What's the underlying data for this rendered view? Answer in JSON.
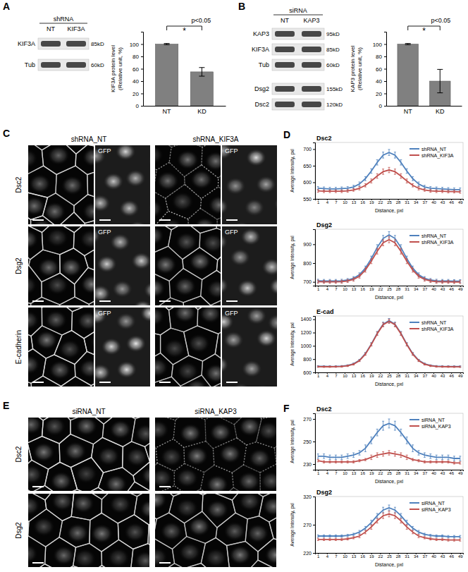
{
  "chart_data": [
    {
      "type": "bar",
      "categories": [
        "NT",
        "KD"
      ],
      "values": [
        100,
        55
      ],
      "errors": [
        1,
        7
      ],
      "color": "#808080",
      "ylim": [
        0,
        120
      ],
      "yticks": [
        0,
        20,
        40,
        60,
        80,
        100
      ],
      "y_label": [
        "KIF3A protein level",
        "(Relative unit, %)"
      ],
      "annotations": [
        "p<0.05",
        "*"
      ]
    },
    {
      "type": "bar",
      "categories": [
        "NT",
        "KD"
      ],
      "values": [
        100,
        40
      ],
      "errors": [
        1,
        19
      ],
      "color": "#808080",
      "ylim": [
        0,
        120
      ],
      "yticks": [
        0,
        20,
        40,
        60,
        80,
        100
      ],
      "y_label": [
        "KAP3 protein level",
        "(Relative unit, %)"
      ],
      "annotations": [
        "p<0.05",
        "*"
      ]
    },
    {
      "type": "line",
      "title": "Dsc2",
      "x_label": "Distance, pxl",
      "y_label": "Average Intensity, pxl",
      "legend": "upper right",
      "x": [
        1,
        3,
        5,
        7,
        9,
        11,
        13,
        15,
        17,
        19,
        21,
        23,
        25,
        27,
        29,
        31,
        33,
        35,
        37,
        39,
        41,
        43,
        45,
        47,
        49
      ],
      "xlim": [
        0,
        50
      ],
      "xticks": [
        1,
        4,
        7,
        10,
        13,
        16,
        19,
        22,
        25,
        28,
        31,
        34,
        37,
        40,
        43,
        46,
        49
      ],
      "ylim": [
        550,
        720
      ],
      "yticks": [
        550,
        600,
        650,
        700
      ],
      "series": [
        {
          "name": "shRNA_NT",
          "color": "#4f81bd",
          "values": [
            582,
            581,
            580,
            580,
            581,
            582,
            586,
            595,
            611,
            634,
            660,
            682,
            690,
            682,
            660,
            634,
            611,
            595,
            586,
            582,
            581,
            580,
            579,
            578,
            578
          ],
          "errors": [
            5,
            5,
            5,
            5,
            5,
            5,
            5,
            6,
            6,
            7,
            8,
            9,
            9,
            9,
            8,
            7,
            6,
            6,
            5,
            5,
            5,
            5,
            5,
            5,
            5
          ]
        },
        {
          "name": "shRNA_KIF3A",
          "color": "#c0504d",
          "values": [
            574,
            573,
            573,
            573,
            573,
            574,
            577,
            582,
            591,
            604,
            619,
            632,
            637,
            632,
            619,
            604,
            591,
            582,
            577,
            574,
            573,
            573,
            572,
            572,
            571
          ],
          "errors": [
            4,
            4,
            4,
            4,
            4,
            4,
            4,
            5,
            5,
            6,
            7,
            8,
            8,
            8,
            7,
            6,
            5,
            5,
            4,
            4,
            4,
            4,
            4,
            4,
            4
          ]
        }
      ]
    },
    {
      "type": "line",
      "title": "Dsg2",
      "x_label": "Distance, pxl",
      "y_label": "Average Intensity, pxl",
      "legend": "upper right",
      "x": [
        1,
        3,
        5,
        7,
        9,
        11,
        13,
        15,
        17,
        19,
        21,
        23,
        25,
        27,
        29,
        31,
        33,
        35,
        37,
        39,
        41,
        43,
        45,
        47,
        49
      ],
      "xlim": [
        0,
        50
      ],
      "xticks": [
        1,
        4,
        7,
        10,
        13,
        16,
        19,
        22,
        25,
        28,
        31,
        34,
        37,
        40,
        43,
        46,
        49
      ],
      "ylim": [
        680,
        980
      ],
      "yticks": [
        700,
        800,
        900
      ],
      "series": [
        {
          "name": "shRNA_NT",
          "color": "#4f81bd",
          "values": [
            706,
            705,
            705,
            705,
            706,
            710,
            719,
            738,
            773,
            824,
            883,
            931,
            950,
            931,
            883,
            824,
            773,
            738,
            719,
            710,
            706,
            705,
            705,
            704,
            704
          ],
          "errors": [
            8,
            8,
            8,
            8,
            8,
            8,
            9,
            10,
            11,
            13,
            15,
            16,
            17,
            16,
            15,
            13,
            11,
            10,
            9,
            8,
            8,
            8,
            8,
            8,
            8
          ]
        },
        {
          "name": "shRNA_KIF3A",
          "color": "#c0504d",
          "values": [
            701,
            700,
            700,
            700,
            701,
            705,
            713,
            730,
            763,
            810,
            863,
            908,
            925,
            908,
            863,
            810,
            763,
            730,
            713,
            705,
            701,
            700,
            700,
            699,
            699
          ],
          "errors": [
            8,
            8,
            8,
            8,
            8,
            8,
            9,
            10,
            11,
            13,
            15,
            16,
            17,
            16,
            15,
            13,
            11,
            10,
            9,
            8,
            8,
            8,
            8,
            8,
            8
          ]
        }
      ]
    },
    {
      "type": "line",
      "title": "E-cad",
      "x_label": "Distance, pxl",
      "y_label": "Average Intensity, pxl",
      "legend": "upper right",
      "x": [
        1,
        3,
        5,
        7,
        9,
        11,
        13,
        15,
        17,
        19,
        21,
        23,
        25,
        27,
        29,
        31,
        33,
        35,
        37,
        39,
        41,
        43,
        45,
        47,
        49
      ],
      "xlim": [
        0,
        50
      ],
      "xticks": [
        1,
        4,
        7,
        10,
        13,
        16,
        19,
        22,
        25,
        28,
        31,
        34,
        37,
        40,
        43,
        46,
        49
      ],
      "ylim": [
        600,
        1450
      ],
      "yticks": [
        600,
        800,
        1000,
        1200,
        1400
      ],
      "series": [
        {
          "name": "shRNA_NT",
          "color": "#4f81bd",
          "values": [
            692,
            691,
            690,
            691,
            694,
            704,
            729,
            783,
            882,
            1026,
            1191,
            1327,
            1380,
            1327,
            1191,
            1026,
            882,
            783,
            729,
            704,
            694,
            691,
            690,
            689,
            689
          ],
          "errors": [
            10,
            10,
            10,
            10,
            10,
            11,
            12,
            14,
            18,
            22,
            26,
            30,
            32,
            30,
            26,
            22,
            18,
            14,
            12,
            11,
            10,
            10,
            10,
            10,
            10
          ]
        },
        {
          "name": "shRNA_KIF3A",
          "color": "#c0504d",
          "values": [
            686,
            685,
            685,
            686,
            689,
            699,
            723,
            777,
            875,
            1019,
            1182,
            1317,
            1370,
            1317,
            1182,
            1019,
            875,
            777,
            723,
            699,
            689,
            686,
            685,
            684,
            684
          ],
          "errors": [
            10,
            10,
            10,
            10,
            10,
            11,
            12,
            14,
            18,
            22,
            26,
            30,
            32,
            30,
            26,
            22,
            18,
            14,
            12,
            11,
            10,
            10,
            10,
            10,
            10
          ]
        }
      ]
    },
    {
      "type": "line",
      "title": "Dsc2",
      "x_label": "Distance, pxl",
      "y_label": "Average Intensity, pxl",
      "legend": "upper right",
      "x": [
        1,
        3,
        5,
        7,
        9,
        11,
        13,
        15,
        17,
        19,
        21,
        23,
        25,
        27,
        29,
        31,
        33,
        35,
        37,
        39,
        41,
        43,
        45,
        47,
        49
      ],
      "xlim": [
        0,
        50
      ],
      "xticks": [
        1,
        4,
        7,
        10,
        13,
        16,
        19,
        22,
        25,
        28,
        31,
        34,
        37,
        40,
        43,
        46,
        49
      ],
      "ylim": [
        225,
        275
      ],
      "yticks": [
        230,
        250,
        270
      ],
      "series": [
        {
          "name": "siRNA_NT",
          "color": "#4f81bd",
          "values": [
            237,
            237,
            236,
            236,
            236,
            237,
            238,
            240,
            244,
            251,
            258,
            264,
            266,
            264,
            258,
            251,
            244,
            240,
            238,
            237,
            236,
            236,
            236,
            235,
            235
          ],
          "errors": [
            2,
            2,
            2,
            2,
            2,
            2,
            2,
            2,
            3,
            3,
            3,
            4,
            4,
            4,
            3,
            3,
            3,
            2,
            2,
            2,
            2,
            2,
            2,
            2,
            2
          ]
        },
        {
          "name": "siRNA_KAP3",
          "color": "#c0504d",
          "values": [
            233,
            232,
            232,
            232,
            232,
            232,
            232,
            233,
            234,
            236,
            238,
            239,
            240,
            239,
            238,
            236,
            234,
            233,
            232,
            232,
            232,
            232,
            232,
            231,
            231
          ],
          "errors": [
            1,
            1,
            1,
            1,
            1,
            1,
            1,
            1,
            1,
            2,
            2,
            2,
            2,
            2,
            2,
            2,
            1,
            1,
            1,
            1,
            1,
            1,
            1,
            1,
            1
          ]
        }
      ]
    },
    {
      "type": "line",
      "title": "Dsg2",
      "x_label": "Distance, pxl",
      "y_label": "Average Intensity, pxl",
      "legend": "upper right",
      "x": [
        1,
        3,
        5,
        7,
        9,
        11,
        13,
        15,
        17,
        19,
        21,
        23,
        25,
        27,
        29,
        31,
        33,
        35,
        37,
        39,
        41,
        43,
        45,
        47,
        49
      ],
      "xlim": [
        0,
        50
      ],
      "xticks": [
        1,
        4,
        7,
        10,
        13,
        16,
        19,
        22,
        25,
        28,
        31,
        34,
        37,
        40,
        43,
        46,
        49
      ],
      "ylim": [
        220,
        320
      ],
      "yticks": [
        220,
        270,
        320
      ],
      "series": [
        {
          "name": "siRNA_NT",
          "color": "#4f81bd",
          "values": [
            250,
            250,
            250,
            250,
            250,
            251,
            253,
            257,
            264,
            274,
            286,
            296,
            300,
            296,
            286,
            274,
            264,
            257,
            253,
            251,
            250,
            250,
            249,
            249,
            249
          ],
          "errors": [
            2,
            2,
            2,
            2,
            2,
            2,
            2,
            3,
            3,
            4,
            4,
            5,
            5,
            5,
            4,
            4,
            3,
            3,
            2,
            2,
            2,
            2,
            2,
            2,
            2
          ]
        },
        {
          "name": "siRNA_KAP3",
          "color": "#c0504d",
          "values": [
            244,
            244,
            244,
            244,
            244,
            245,
            247,
            250,
            257,
            266,
            277,
            286,
            289,
            286,
            277,
            266,
            257,
            250,
            247,
            245,
            244,
            244,
            243,
            243,
            243
          ],
          "errors": [
            2,
            2,
            2,
            2,
            2,
            2,
            2,
            3,
            3,
            4,
            4,
            5,
            5,
            5,
            4,
            4,
            3,
            3,
            2,
            2,
            2,
            2,
            2,
            2,
            2
          ]
        }
      ]
    }
  ],
  "figure": {
    "panel_letters": [
      "A",
      "B",
      "C",
      "D",
      "E",
      "F"
    ],
    "blots": [
      {
        "header": "shRNA",
        "lanes": [
          "NT",
          "KIF3A"
        ],
        "row_groups": [
          [
            {
              "label": "KIF3A",
              "size": "85kD"
            },
            {
              "label": "Tub",
              "size": "60kD"
            }
          ]
        ]
      },
      {
        "header": "siRNA",
        "lanes": [
          "NT",
          "KAP3"
        ],
        "row_groups": [
          [
            {
              "label": "KAP3",
              "size": "95kD"
            },
            {
              "label": "KIF3A",
              "size": "85kD"
            },
            {
              "label": "Tub",
              "size": "60kD"
            }
          ],
          [
            {
              "label": "Dsg2",
              "size": "155kD"
            },
            {
              "label": "Dsc2",
              "size": "120kD"
            }
          ]
        ]
      }
    ],
    "panels": [
      {
        "columns": [
          "shRNA_NT",
          "shRNA_KIF3A"
        ],
        "rows": [
          "Dsc2",
          "Dsg2",
          "E-cadherin"
        ],
        "inset_label": "GFP"
      },
      {
        "columns": [
          "siRNA_NT",
          "siRNA_KAP3"
        ],
        "rows": [
          "Dsc2",
          "Dsg2"
        ]
      }
    ]
  }
}
